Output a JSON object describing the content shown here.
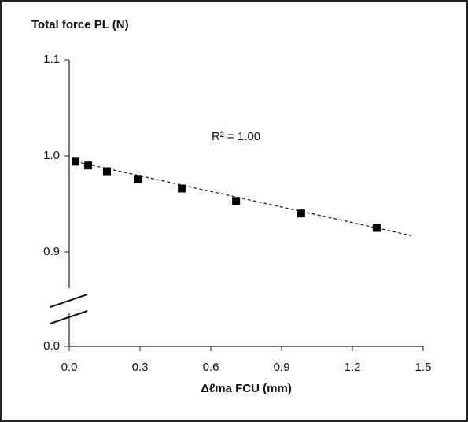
{
  "chart_data": {
    "type": "scatter",
    "title": "Total force PL (N)",
    "x_label": "Δℓma FCU (mm)",
    "annotation": "R² = 1.00",
    "x": [
      0.027,
      0.08,
      0.16,
      0.29,
      0.477,
      0.707,
      0.983,
      1.303
    ],
    "values": [
      0.994,
      0.99,
      0.984,
      0.976,
      0.966,
      0.953,
      0.94,
      0.925
    ],
    "color": "#000000",
    "trendline": {
      "x": [
        0.027,
        1.45
      ],
      "values": [
        0.994,
        0.917
      ]
    },
    "xlim": [
      0,
      1.5
    ],
    "xticks": [
      {
        "value": 0,
        "label": "0.0"
      },
      0.3,
      0.6,
      0.9,
      1.2,
      1.5
    ],
    "ylim": [
      0,
      1.1
    ],
    "axis_break": [
      0,
      0.85
    ],
    "yticks": [
      {
        "value": 0,
        "label": "0.0"
      },
      0.9,
      {
        "value": 1,
        "label": "1.0"
      },
      1.1
    ]
  }
}
